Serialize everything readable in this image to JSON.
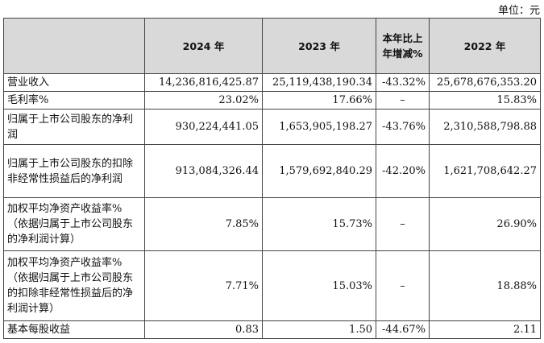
{
  "unit_label": "单位：元",
  "headers": [
    "",
    "2024 年",
    "2023 年",
    "本年比上年增减%",
    "2022 年"
  ],
  "rows": [
    {
      "label": "营业收入",
      "v2024": "14,236,816,425.87",
      "v2023": "25,119,438,190.34",
      "change": "-43.32%",
      "v2022": "25,678,676,353.20"
    },
    {
      "label": "毛利率%",
      "v2024": "23.02%",
      "v2023": "17.66%",
      "change": "–",
      "v2022": "15.83%"
    },
    {
      "label": "归属于上市公司股东的净利润",
      "v2024": "930,224,441.05",
      "v2023": "1,653,905,198.27",
      "change": "-43.76%",
      "v2022": "2,310,588,798.88"
    },
    {
      "label": "归属于上市公司股东的扣除非经常性损益后的净利润",
      "v2024": "913,084,326.44",
      "v2023": "1,579,692,840.29",
      "change": "-42.20%",
      "v2022": "1,621,708,642.27"
    },
    {
      "label": "加权平均净资产收益率%（依据归属于上市公司股东的净利润计算）",
      "v2024": "7.85%",
      "v2023": "15.73%",
      "change": "–",
      "v2022": "26.90%"
    },
    {
      "label": "加权平均净资产收益率%（依据归属于上市公司股东的扣除非经常性损益后的净利润计算）",
      "v2024": "7.71%",
      "v2023": "15.03%",
      "change": "–",
      "v2022": "18.88%"
    },
    {
      "label": "基本每股收益",
      "v2024": "0.83",
      "v2023": "1.50",
      "change": "-44.67%",
      "v2022": "2.11"
    }
  ]
}
